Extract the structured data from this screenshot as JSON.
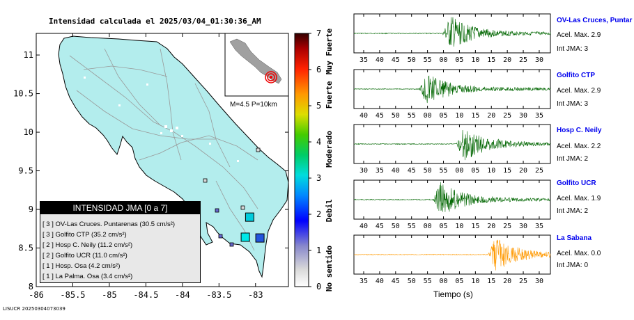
{
  "title": "Intensidad calculada el 2025/03/04_01:30:36_AM",
  "footer": "LISUCR 20250304073039",
  "chart_data": [
    {
      "type": "map",
      "xticks": [
        -86,
        -85.5,
        -85,
        -84.5,
        -84,
        -83.5,
        -83
      ],
      "xlim": [
        -86,
        -82.55
      ],
      "yticks": [
        8,
        8.5,
        9,
        9.5,
        10,
        10.5,
        11
      ],
      "ylim": [
        8,
        11.28
      ],
      "stations": [
        {
          "name": "OV-Las Cruces. Puntarenas",
          "lon": -83.08,
          "lat": 8.9,
          "intensity": 3,
          "color": "#00ccdd"
        },
        {
          "name": "Golfito CTP",
          "lon": -83.14,
          "lat": 8.64,
          "intensity": 3,
          "color": "#00e8e8"
        },
        {
          "name": "Hosp C. Neily",
          "lon": -82.94,
          "lat": 8.63,
          "intensity": 2,
          "color": "#2255dd"
        }
      ]
    },
    {
      "type": "heatmap",
      "ticks": [
        0,
        1,
        2,
        3,
        4,
        5,
        6,
        7
      ],
      "range": [
        0,
        7
      ],
      "words": [
        "No sentido",
        "Debil",
        "Moderado",
        "Fuerte",
        "Muy Fuerte"
      ]
    },
    {
      "type": "line",
      "xlabel": "Tiempo (s)",
      "series": [
        {
          "name": "OV-Las Cruces, Puntar",
          "acel": "Acel. Max. 2.9",
          "int": "Int JMA: 3",
          "color": "#006600",
          "ticks": [
            "35",
            "40",
            "45",
            "50",
            "55",
            "00",
            "05",
            "10",
            "15",
            "20",
            "25",
            "30"
          ],
          "onset": 0.45
        },
        {
          "name": "Golfito CTP",
          "acel": "Acel. Max. 2.9",
          "int": "Int JMA: 3",
          "color": "#006600",
          "ticks": [
            "40",
            "45",
            "50",
            "55",
            "00",
            "05",
            "10",
            "15",
            "20",
            "25",
            "30",
            "35"
          ],
          "onset": 0.33
        },
        {
          "name": "Hosp C. Neily",
          "acel": "Acel. Max. 2.2",
          "int": "Int JMA: 2",
          "color": "#006600",
          "ticks": [
            "30",
            "35",
            "40",
            "45",
            "50",
            "55",
            "00",
            "05",
            "10",
            "15",
            "20",
            "25"
          ],
          "onset": 0.52
        },
        {
          "name": "Golfito UCR",
          "acel": "Acel. Max. 1.9",
          "int": "Int JMA: 2",
          "color": "#006600",
          "ticks": [
            "40",
            "45",
            "50",
            "55",
            "00",
            "05",
            "10",
            "15",
            "20",
            "25",
            "30",
            "35"
          ],
          "onset": 0.4
        },
        {
          "name": "La Sabana",
          "acel": "Acel. Max. 0.0",
          "int": "Int JMA: 0",
          "color": "#ff9900",
          "ticks": [
            "35",
            "40",
            "45",
            "50",
            "55",
            "00",
            "05",
            "10",
            "15",
            "20",
            "25",
            "30"
          ],
          "onset": 0.68
        }
      ]
    }
  ],
  "legend": {
    "title": "INTENSIDAD JMA [0 a 7]",
    "rows": [
      "[ 3 ] OV-Las Cruces. Puntarenas (30.5 cm/s²)",
      "[ 3 ] Golfito CTP (35.2 cm/s²)",
      "[ 2 ] Hosp C. Neily (11.2 cm/s²)",
      "[ 2 ] Golfito UCR (11.0 cm/s²)",
      "[ 1 ] Hosp. Osa (4.2 cm/s²)",
      "[ 1 ] La Palma. Osa (3.4 cm/s²)"
    ]
  },
  "inset": {
    "label": "M=4.5 P=10km"
  }
}
